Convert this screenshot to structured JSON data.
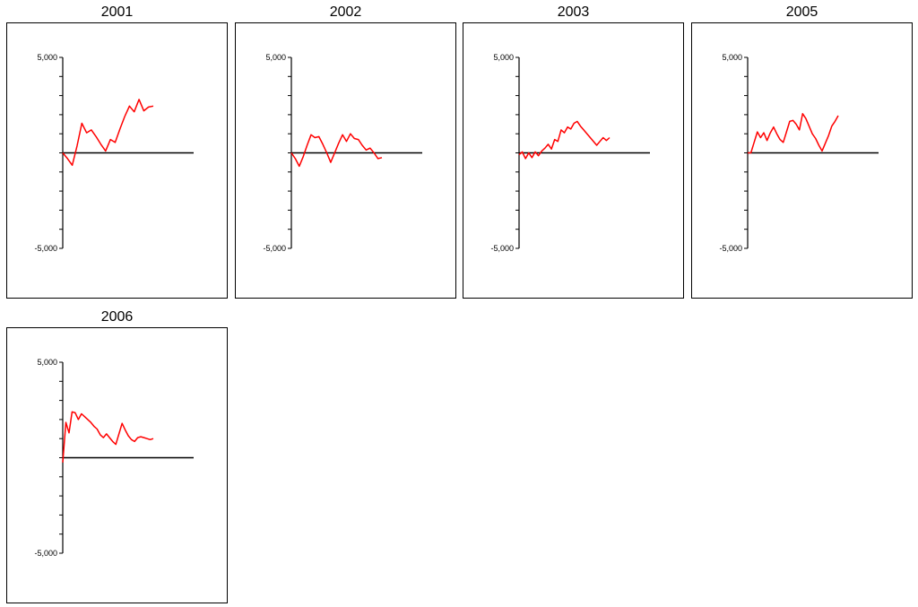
{
  "chart_data": [
    {
      "type": "line",
      "title": "2001",
      "ylim": [
        -5000,
        5000
      ],
      "y_tick_labels": [
        "5,000",
        "-5,000"
      ],
      "series_color": "#ff0000",
      "x": [
        0,
        1,
        2,
        3,
        4,
        5,
        6,
        7,
        8,
        9,
        10,
        11,
        12,
        13,
        14,
        15,
        16,
        17,
        18,
        19
      ],
      "values": [
        0,
        -300,
        -650,
        350,
        1550,
        1050,
        1200,
        850,
        450,
        100,
        700,
        550,
        1250,
        1900,
        2450,
        2150,
        2800,
        2200,
        2400,
        2450
      ]
    },
    {
      "type": "line",
      "title": "2002",
      "ylim": [
        -5000,
        5000
      ],
      "y_tick_labels": [
        "5,000",
        "-5,000"
      ],
      "series_color": "#ff0000",
      "x": [
        0,
        1,
        2,
        3,
        4,
        5,
        6,
        7,
        8,
        9,
        10,
        11,
        12,
        13,
        14,
        15,
        16,
        17,
        18,
        19,
        20,
        21,
        22,
        23
      ],
      "values": [
        0,
        -300,
        -700,
        -200,
        400,
        950,
        800,
        850,
        450,
        0,
        -500,
        0,
        500,
        950,
        600,
        1000,
        750,
        700,
        400,
        150,
        250,
        0,
        -300,
        -250
      ]
    },
    {
      "type": "line",
      "title": "2003",
      "ylim": [
        -5000,
        5000
      ],
      "y_tick_labels": [
        "5,000",
        "-5,000"
      ],
      "series_color": "#ff0000",
      "x": [
        0,
        1,
        2,
        3,
        4,
        5,
        6,
        7,
        8,
        9,
        10,
        11,
        12,
        13,
        14,
        15,
        16,
        17,
        18,
        19,
        20,
        21,
        22,
        23,
        24,
        25,
        26,
        27,
        28
      ],
      "values": [
        -100,
        50,
        -300,
        0,
        -250,
        50,
        -150,
        100,
        250,
        450,
        200,
        700,
        600,
        1200,
        1050,
        1350,
        1250,
        1550,
        1650,
        1400,
        1200,
        1000,
        800,
        600,
        400,
        600,
        800,
        650,
        800
      ]
    },
    {
      "type": "line",
      "title": "2005",
      "ylim": [
        -5000,
        5000
      ],
      "y_tick_labels": [
        "5,000",
        "-5,000"
      ],
      "series_color": "#ff0000",
      "x": [
        0,
        1,
        2,
        3,
        4,
        5,
        6,
        7,
        8,
        9,
        10,
        11,
        12,
        13,
        14,
        15,
        16,
        17,
        18,
        19,
        20,
        21,
        22,
        23,
        24,
        25,
        26,
        27,
        28
      ],
      "values": [
        0,
        0,
        550,
        1100,
        800,
        1050,
        650,
        1050,
        1350,
        1000,
        700,
        550,
        1100,
        1650,
        1700,
        1500,
        1200,
        2050,
        1800,
        1400,
        1000,
        750,
        400,
        100,
        500,
        900,
        1400,
        1650,
        1950
      ]
    },
    {
      "type": "line",
      "title": "2006",
      "ylim": [
        -5000,
        5000
      ],
      "y_tick_labels": [
        "5,000",
        "-5,000"
      ],
      "series_color": "#ff0000",
      "x": [
        0,
        1,
        2,
        3,
        4,
        5,
        6,
        7,
        8,
        9,
        10,
        11,
        12,
        13,
        14,
        15,
        16,
        17,
        18,
        19,
        20,
        21,
        22,
        23,
        24,
        25,
        26,
        27,
        28,
        29
      ],
      "values": [
        -250,
        1850,
        1300,
        2400,
        2350,
        2000,
        2300,
        2150,
        2000,
        1850,
        1650,
        1500,
        1200,
        1050,
        1250,
        1050,
        850,
        700,
        1250,
        1800,
        1450,
        1150,
        950,
        850,
        1050,
        1100,
        1050,
        1000,
        950,
        1000
      ]
    }
  ]
}
